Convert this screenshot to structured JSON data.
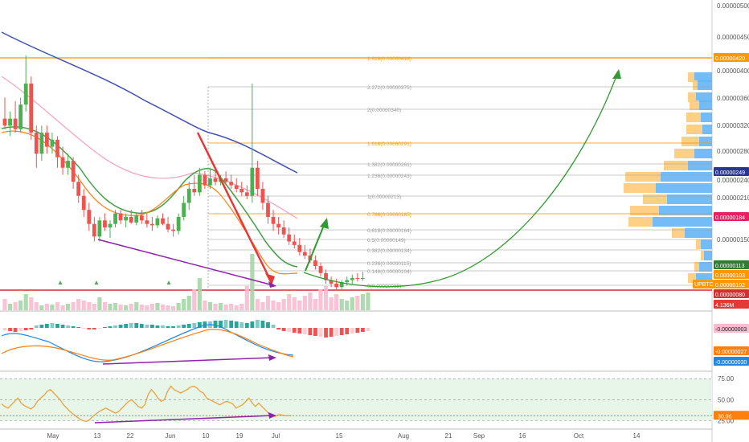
{
  "colors": {
    "up": "#4caf50",
    "down": "#ef5350",
    "ema_fast": "#ff7f0e",
    "ema_mid": "#43a047",
    "ma_pink": "#f48fb1",
    "ma_blue": "#3f51b5",
    "fib_orange": "#ff9800",
    "fib_gray": "#9e9e9e",
    "resistance": "#ffa726",
    "support": "#d32f2f",
    "arrow_green": "#2e9c2e",
    "arrow_red": "#e53935",
    "purple": "#8e24aa",
    "vp_orange": "#ffcc80",
    "vp_blue": "#64b5f6",
    "rsi_band": "#e8f5e9"
  },
  "chart_data": [
    {
      "type": "candlestick",
      "panel": "price",
      "symbol": "UPBTC",
      "y_axis_labels": [
        "0.00000500",
        "0.00000450",
        "0.00000420",
        "0.00000400",
        "0.00000360",
        "0.00000320",
        "0.00000280",
        "0.00000249",
        "0.00000240",
        "0.00000210",
        "0.00000184",
        "0.00000150",
        "0.00000113",
        "0.00000103",
        "0.00000102",
        "0.00000080"
      ],
      "x_axis_labels": [
        "May",
        "13",
        "22",
        "Jun",
        "10",
        "19",
        "Jul",
        "15",
        "Aug",
        "21",
        "Sep",
        "16",
        "Oct",
        "14"
      ],
      "price_tags": [
        {
          "label": "0.00000420",
          "color": "#ff9800"
        },
        {
          "label": "0.00000249",
          "color": "#283593"
        },
        {
          "label": "0.00000184",
          "color": "#e91e63"
        },
        {
          "label": "0.00000113",
          "color": "#2e7d32"
        },
        {
          "label": "0.00000103",
          "color": "#ff9800"
        },
        {
          "label": "0.00000102",
          "color": "#ff9800"
        },
        {
          "label": "0.00000080",
          "color": "#d32f2f"
        },
        {
          "label": "4.136M",
          "color": "#e53935"
        }
      ],
      "fib_levels": [
        {
          "label": "2.618(0.00000418)",
          "orange": true
        },
        {
          "label": "2.272(0.00000375)",
          "orange": false
        },
        {
          "label": "2(0.00000340)",
          "orange": false
        },
        {
          "label": "1.618(0.00000291)",
          "orange": true
        },
        {
          "label": "1.382(0.00000261)",
          "orange": false
        },
        {
          "label": "1.236(0.00000243)",
          "orange": false
        },
        {
          "label": "1(0.00000213)",
          "orange": false
        },
        {
          "label": "0.786(0.00000185)",
          "orange": true
        },
        {
          "label": "0.618(0.00000164)",
          "orange": false
        },
        {
          "label": "0.5(0.00000149)",
          "orange": false
        },
        {
          "label": "0.382(0.00000134)",
          "orange": false
        },
        {
          "label": "0.236(0.00000115)",
          "orange": false
        },
        {
          "label": "0.148(0.00000104)",
          "orange": false
        },
        {
          "label": "0(0.00000085)",
          "orange": false
        }
      ],
      "candles": [
        {
          "x": "Apr 25",
          "o": 3.3,
          "h": 3.6,
          "l": 3.15,
          "c": 3.2
        },
        {
          "x": "Apr 26",
          "o": 3.2,
          "h": 3.4,
          "l": 3.05,
          "c": 3.3
        },
        {
          "x": "Apr 27",
          "o": 3.3,
          "h": 3.55,
          "l": 3.1,
          "c": 3.15
        },
        {
          "x": "Apr 28",
          "o": 3.15,
          "h": 3.6,
          "l": 3.1,
          "c": 3.5
        },
        {
          "x": "Apr 29",
          "o": 3.5,
          "h": 4.2,
          "l": 3.4,
          "c": 3.8
        },
        {
          "x": "Apr 30",
          "o": 3.8,
          "h": 3.9,
          "l": 3.0,
          "c": 3.1
        },
        {
          "x": "May 1",
          "o": 3.1,
          "h": 3.2,
          "l": 2.6,
          "c": 2.8
        },
        {
          "x": "May 2",
          "o": 2.8,
          "h": 3.2,
          "l": 2.7,
          "c": 3.1
        },
        {
          "x": "May 3",
          "o": 3.1,
          "h": 3.2,
          "l": 2.8,
          "c": 2.9
        },
        {
          "x": "May 4",
          "o": 2.9,
          "h": 3.1,
          "l": 2.8,
          "c": 3.0
        },
        {
          "x": "May 5",
          "o": 3.0,
          "h": 3.05,
          "l": 2.6,
          "c": 2.75
        },
        {
          "x": "May 6",
          "o": 2.75,
          "h": 2.9,
          "l": 2.5,
          "c": 2.6
        },
        {
          "x": "May 7",
          "o": 2.6,
          "h": 2.8,
          "l": 2.5,
          "c": 2.7
        },
        {
          "x": "May 8",
          "o": 2.7,
          "h": 2.75,
          "l": 2.3,
          "c": 2.4
        },
        {
          "x": "May 9",
          "o": 2.4,
          "h": 2.5,
          "l": 2.1,
          "c": 2.2
        },
        {
          "x": "May 10",
          "o": 2.2,
          "h": 2.3,
          "l": 1.9,
          "c": 2.0
        },
        {
          "x": "May 11",
          "o": 2.0,
          "h": 2.1,
          "l": 1.7,
          "c": 1.8
        },
        {
          "x": "May 12",
          "o": 1.8,
          "h": 1.9,
          "l": 1.55,
          "c": 1.62
        },
        {
          "x": "May 13",
          "o": 1.62,
          "h": 1.9,
          "l": 1.55,
          "c": 1.85
        },
        {
          "x": "May 14",
          "o": 1.85,
          "h": 1.95,
          "l": 1.7,
          "c": 1.75
        },
        {
          "x": "May 15",
          "o": 1.75,
          "h": 1.85,
          "l": 1.6,
          "c": 1.8
        },
        {
          "x": "May 16",
          "o": 1.8,
          "h": 2.0,
          "l": 1.75,
          "c": 1.95
        },
        {
          "x": "May 17",
          "o": 1.95,
          "h": 2.0,
          "l": 1.8,
          "c": 1.85
        },
        {
          "x": "May 18",
          "o": 1.85,
          "h": 1.95,
          "l": 1.75,
          "c": 1.9
        },
        {
          "x": "May 19",
          "o": 1.9,
          "h": 2.0,
          "l": 1.8,
          "c": 1.82
        },
        {
          "x": "May 20",
          "o": 1.82,
          "h": 1.95,
          "l": 1.78,
          "c": 1.92
        },
        {
          "x": "May 21",
          "o": 1.92,
          "h": 2.0,
          "l": 1.8,
          "c": 1.85
        },
        {
          "x": "May 22",
          "o": 1.85,
          "h": 1.95,
          "l": 1.75,
          "c": 1.8
        },
        {
          "x": "May 23",
          "o": 1.8,
          "h": 1.9,
          "l": 1.7,
          "c": 1.78
        },
        {
          "x": "May 24",
          "o": 1.78,
          "h": 1.92,
          "l": 1.74,
          "c": 1.88
        },
        {
          "x": "May 25",
          "o": 1.88,
          "h": 1.95,
          "l": 1.78,
          "c": 1.8
        },
        {
          "x": "May 26",
          "o": 1.8,
          "h": 1.9,
          "l": 1.68,
          "c": 1.72
        },
        {
          "x": "May 27",
          "o": 1.72,
          "h": 1.8,
          "l": 1.62,
          "c": 1.7
        },
        {
          "x": "May 28",
          "o": 1.7,
          "h": 1.95,
          "l": 1.65,
          "c": 1.9
        },
        {
          "x": "May 29",
          "o": 1.9,
          "h": 2.2,
          "l": 1.85,
          "c": 2.1
        },
        {
          "x": "May 30",
          "o": 2.1,
          "h": 2.4,
          "l": 2.0,
          "c": 2.3
        },
        {
          "x": "May 31",
          "o": 2.3,
          "h": 2.5,
          "l": 2.2,
          "c": 2.25
        },
        {
          "x": "Jun 1",
          "o": 2.25,
          "h": 2.6,
          "l": 2.2,
          "c": 2.5
        },
        {
          "x": "Jun 2",
          "o": 2.5,
          "h": 2.55,
          "l": 2.3,
          "c": 2.35
        },
        {
          "x": "Jun 3",
          "o": 2.35,
          "h": 2.6,
          "l": 2.3,
          "c": 2.45
        },
        {
          "x": "Jun 4",
          "o": 2.45,
          "h": 2.55,
          "l": 2.35,
          "c": 2.4
        },
        {
          "x": "Jun 5",
          "o": 2.4,
          "h": 2.5,
          "l": 2.35,
          "c": 2.45
        },
        {
          "x": "Jun 6",
          "o": 2.45,
          "h": 2.55,
          "l": 2.35,
          "c": 2.4
        },
        {
          "x": "Jun 7",
          "o": 2.4,
          "h": 2.5,
          "l": 2.3,
          "c": 2.35
        },
        {
          "x": "Jun 8",
          "o": 2.35,
          "h": 2.45,
          "l": 2.25,
          "c": 2.3
        },
        {
          "x": "Jun 9",
          "o": 2.3,
          "h": 2.4,
          "l": 2.2,
          "c": 2.25
        },
        {
          "x": "Jun 10",
          "o": 2.25,
          "h": 2.35,
          "l": 2.15,
          "c": 2.2
        },
        {
          "x": "Jun 11",
          "o": 2.2,
          "h": 3.8,
          "l": 2.1,
          "c": 2.6
        },
        {
          "x": "Jun 12",
          "o": 2.6,
          "h": 2.7,
          "l": 2.2,
          "c": 2.3
        },
        {
          "x": "Jun 13",
          "o": 2.3,
          "h": 2.4,
          "l": 2.0,
          "c": 2.1
        },
        {
          "x": "Jun 14",
          "o": 2.1,
          "h": 2.2,
          "l": 1.8,
          "c": 1.9
        },
        {
          "x": "Jun 15",
          "o": 1.9,
          "h": 2.0,
          "l": 1.7,
          "c": 1.8
        },
        {
          "x": "Jun 16",
          "o": 1.8,
          "h": 1.9,
          "l": 1.65,
          "c": 1.75
        },
        {
          "x": "Jun 17",
          "o": 1.75,
          "h": 1.85,
          "l": 1.6,
          "c": 1.65
        },
        {
          "x": "Jun 18",
          "o": 1.65,
          "h": 1.75,
          "l": 1.5,
          "c": 1.55
        },
        {
          "x": "Jun 19",
          "o": 1.55,
          "h": 1.65,
          "l": 1.45,
          "c": 1.5
        },
        {
          "x": "Jun 20",
          "o": 1.5,
          "h": 1.6,
          "l": 1.35,
          "c": 1.4
        },
        {
          "x": "Jun 21",
          "o": 1.4,
          "h": 1.5,
          "l": 1.3,
          "c": 1.35
        },
        {
          "x": "Jun 22",
          "o": 1.35,
          "h": 1.45,
          "l": 1.25,
          "c": 1.28
        },
        {
          "x": "Jun 23",
          "o": 1.28,
          "h": 1.35,
          "l": 1.15,
          "c": 1.2
        },
        {
          "x": "Jun 24",
          "o": 1.2,
          "h": 1.25,
          "l": 1.05,
          "c": 1.1
        },
        {
          "x": "Jun 25",
          "o": 1.1,
          "h": 1.15,
          "l": 0.95,
          "c": 1.0
        },
        {
          "x": "Jun 26",
          "o": 1.0,
          "h": 1.05,
          "l": 0.9,
          "c": 0.95
        },
        {
          "x": "Jun 27",
          "o": 0.95,
          "h": 1.02,
          "l": 0.85,
          "c": 0.9
        },
        {
          "x": "Jun 28",
          "o": 0.9,
          "h": 1.0,
          "l": 0.87,
          "c": 0.97
        },
        {
          "x": "Jun 29",
          "o": 0.97,
          "h": 1.05,
          "l": 0.92,
          "c": 1.0
        },
        {
          "x": "Jun 30",
          "o": 1.0,
          "h": 1.08,
          "l": 0.95,
          "c": 1.03
        },
        {
          "x": "Jul 1",
          "o": 1.03,
          "h": 1.1,
          "l": 0.98,
          "c": 1.02
        },
        {
          "x": "Jul 2",
          "o": 1.02,
          "h": 1.12,
          "l": 0.99,
          "c": 1.03
        }
      ]
    },
    {
      "type": "histogram+line",
      "panel": "macd",
      "y_axis_labels": [
        "-0.00000003",
        "-0.00000027",
        "-0.00000030"
      ],
      "tags": [
        {
          "label": "-0.00000003",
          "color": "#f8bbd0",
          "text_dark": true
        },
        {
          "label": "-0.00000027",
          "color": "#ff7f0e",
          "text_dark": false
        },
        {
          "label": "-0.00000030",
          "color": "#1e88e5",
          "text_dark": false
        }
      ]
    },
    {
      "type": "line",
      "panel": "rsi",
      "y_axis_labels": [
        "75.00",
        "50.00",
        "25.00"
      ],
      "tags": [
        {
          "label": "30.96",
          "color": "#ff7f0e"
        }
      ],
      "values": [
        45,
        42,
        40,
        44,
        48,
        52,
        46,
        43,
        41,
        39,
        42,
        48,
        52,
        55,
        60,
        62,
        58,
        54,
        50,
        44,
        40,
        36,
        33,
        30,
        27,
        25,
        24,
        26,
        30,
        33,
        36,
        38,
        40,
        38,
        36,
        34,
        36,
        40,
        44,
        48,
        50,
        46,
        42,
        40,
        44,
        56,
        62,
        58,
        52,
        48,
        50,
        60,
        66,
        62,
        60,
        58,
        60,
        62,
        65,
        66,
        64,
        60,
        58,
        52,
        50,
        48,
        46,
        44,
        46,
        48,
        47,
        45,
        40,
        42,
        44,
        48,
        52,
        46,
        42,
        46,
        42,
        38,
        34,
        32,
        30,
        32,
        32,
        31,
        31,
        31
      ]
    }
  ]
}
